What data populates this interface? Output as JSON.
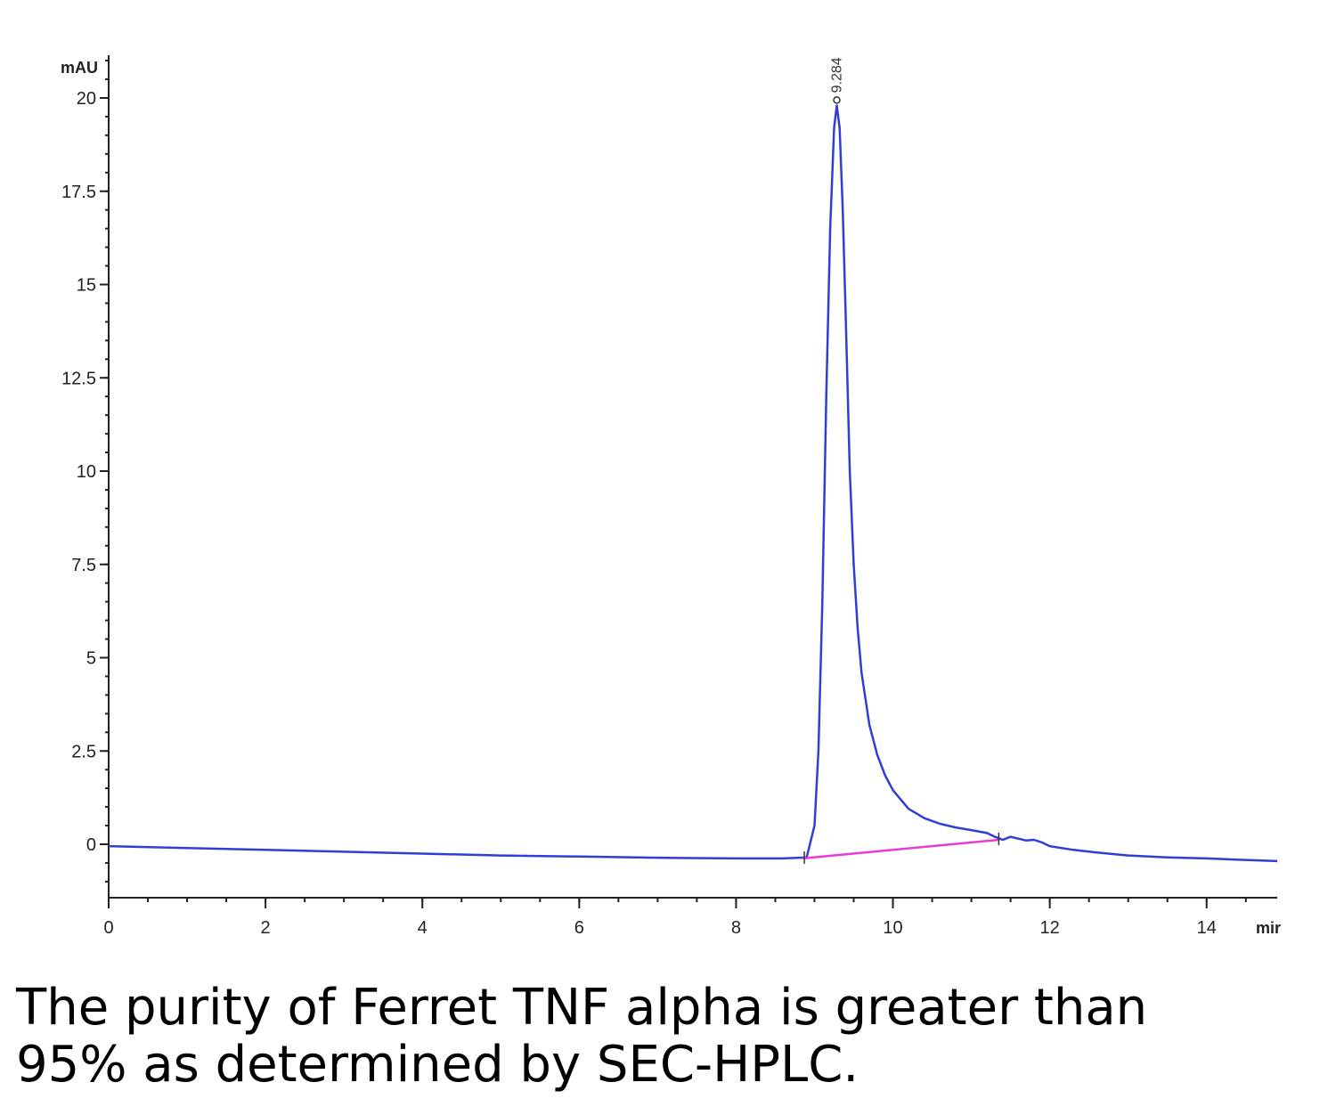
{
  "chart_data": {
    "type": "line",
    "title": "",
    "ylabel": "mAU",
    "xlabel": "mir",
    "xlim": [
      0,
      14.9
    ],
    "ylim": [
      -1.5,
      21
    ],
    "x_ticks": [
      0,
      2,
      4,
      6,
      8,
      10,
      12,
      14
    ],
    "y_ticks": [
      0,
      2.5,
      5,
      7.5,
      10,
      12.5,
      15,
      17.5,
      20
    ],
    "y_tick_labels": [
      "0",
      "2.5",
      "5",
      "7.5",
      "10",
      "12.5",
      "15",
      "17.5",
      "20"
    ],
    "peak_label": "9.284",
    "grid": false,
    "series": [
      {
        "color": "#2f3fd6",
        "x": [
          0,
          1,
          2,
          3,
          4,
          5,
          6,
          7,
          8,
          8.6,
          8.9,
          9.0,
          9.05,
          9.1,
          9.15,
          9.2,
          9.25,
          9.284,
          9.32,
          9.36,
          9.4,
          9.45,
          9.5,
          9.55,
          9.6,
          9.7,
          9.8,
          9.9,
          10.0,
          10.2,
          10.4,
          10.6,
          10.8,
          11.0,
          11.2,
          11.3,
          11.4,
          11.5,
          11.6,
          11.7,
          11.8,
          11.9,
          12.0,
          12.3,
          12.6,
          13.0,
          13.5,
          14.0,
          14.5,
          14.9
        ],
        "y": [
          -0.05,
          -0.1,
          -0.15,
          -0.2,
          -0.25,
          -0.3,
          -0.33,
          -0.36,
          -0.38,
          -0.38,
          -0.35,
          0.5,
          2.5,
          6.5,
          12,
          16.5,
          19.2,
          19.8,
          19.2,
          17,
          14,
          10,
          7.5,
          5.8,
          4.6,
          3.2,
          2.4,
          1.85,
          1.45,
          0.95,
          0.7,
          0.55,
          0.45,
          0.38,
          0.3,
          0.2,
          0.12,
          0.2,
          0.15,
          0.1,
          0.12,
          0.05,
          -0.05,
          -0.15,
          -0.22,
          -0.3,
          -0.35,
          -0.38,
          -0.42,
          -0.45
        ]
      }
    ],
    "baseline": {
      "color": "#e83bd6",
      "x": [
        8.85,
        11.35
      ],
      "y": [
        -0.38,
        0.12
      ]
    },
    "integration_marks": [
      8.87,
      11.35
    ]
  },
  "caption": {
    "line1": "The purity of Ferret TNF alpha is greater than",
    "line2": "95% as determined by SEC-HPLC."
  }
}
